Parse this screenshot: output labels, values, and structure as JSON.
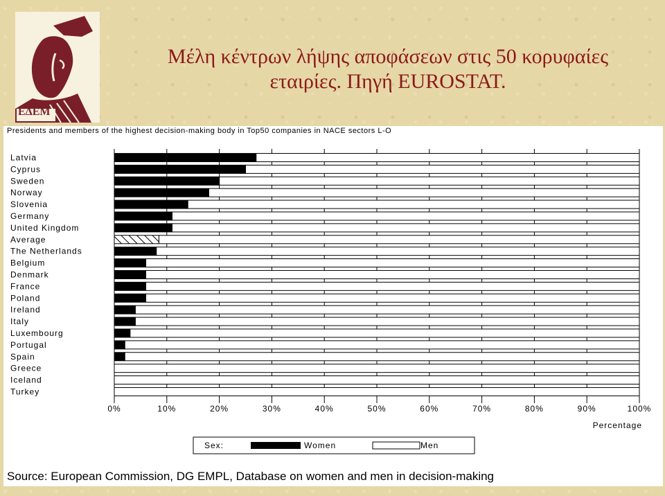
{
  "logo": {
    "text": "ΕΔΕΜ",
    "icon": "edem-logo-icon"
  },
  "title": {
    "line1": "Μέλη κέντρων λήψης αποφάσεων στις 50 κορυφαίες",
    "line2": "εταιρίες. Πηγή EUROSTAT."
  },
  "chart_data": {
    "type": "bar",
    "orientation": "horizontal",
    "stacked": true,
    "title": "Presidents and members of the highest decision-making body in Top50 companies in NACE sectors L-O",
    "xlabel": "Percentage",
    "xlim": [
      0,
      100
    ],
    "xticks": [
      "0%",
      "10%",
      "20%",
      "30%",
      "40%",
      "50%",
      "60%",
      "70%",
      "80%",
      "90%",
      "100%"
    ],
    "categories": [
      "Latvia",
      "Cyprus",
      "Sweden",
      "Norway",
      "Slovenia",
      "Germany",
      "United Kingdom",
      "Average",
      "The Netherlands",
      "Belgium",
      "Denmark",
      "France",
      "Poland",
      "Ireland",
      "Italy",
      "Luxembourg",
      "Portugal",
      "Spain",
      "Greece",
      "Iceland",
      "Turkey"
    ],
    "series": [
      {
        "name": "Women",
        "values": [
          27,
          25,
          20,
          18,
          14,
          11,
          11,
          8.5,
          8,
          6,
          6,
          6,
          6,
          4,
          4,
          3,
          2,
          2,
          0,
          0,
          0
        ]
      },
      {
        "name": "Men",
        "values": [
          73,
          75,
          80,
          82,
          86,
          89,
          89,
          91.5,
          92,
          94,
          94,
          94,
          94,
          96,
          96,
          97,
          98,
          98,
          100,
          100,
          100
        ]
      }
    ],
    "highlight_category": "Average",
    "legend": {
      "label": "Sex:",
      "position": "bottom",
      "items": [
        "Women",
        "Men"
      ]
    },
    "colors": {
      "Women": "#000000",
      "Men": "#ffffff",
      "Average": "hatched"
    }
  },
  "source": "Source: European Commission, DG EMPL, Database on women and men in decision-making"
}
